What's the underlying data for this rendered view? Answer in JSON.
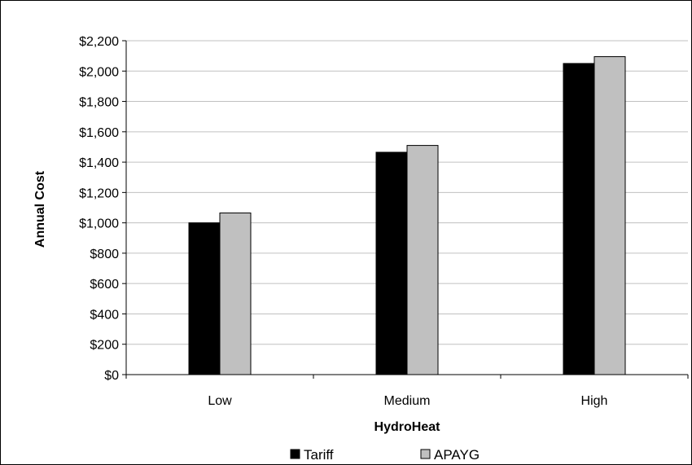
{
  "chart_data": {
    "type": "bar",
    "title": "",
    "xlabel": "HydroHeat",
    "ylabel": "Annual Cost",
    "categories": [
      "Low",
      "Medium",
      "High"
    ],
    "series": [
      {
        "name": "Tariff",
        "values": [
          1000,
          1465,
          2050
        ],
        "color": "#000000"
      },
      {
        "name": "APAYG",
        "values": [
          1065,
          1510,
          2095
        ],
        "color": "#c0c0c0"
      }
    ],
    "ylim": [
      0,
      2200
    ],
    "yticks": [
      0,
      200,
      400,
      600,
      800,
      1000,
      1200,
      1400,
      1600,
      1800,
      2000,
      2200
    ],
    "ytick_labels": [
      "$0",
      "$200",
      "$400",
      "$600",
      "$800",
      "$1,000",
      "$1,200",
      "$1,400",
      "$1,600",
      "$1,800",
      "$2,000",
      "$2,200"
    ],
    "grid": true,
    "legend_position": "bottom"
  }
}
